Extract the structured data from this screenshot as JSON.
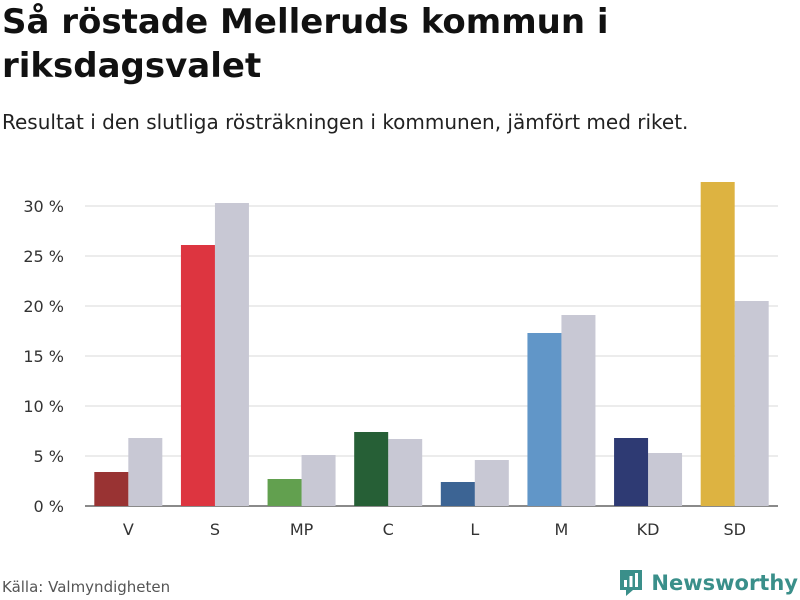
{
  "header": {
    "title": "Så röstade Melleruds kommun i riksdagsvalet",
    "subtitle": "Resultat i den slutliga rösträkningen i kommunen, jämfört med riket."
  },
  "footer": {
    "source": "Källa: Valmyndigheten",
    "brand": "Newsworthy",
    "brand_icon": "newsworthy-logo-icon",
    "brand_color": "#3a8f8a"
  },
  "chart_data": {
    "type": "bar",
    "title": "Så röstade Melleruds kommun i riksdagsvalet",
    "subtitle": "Resultat i den slutliga rösträkningen i kommunen, jämfört med riket.",
    "xlabel": "",
    "ylabel": "",
    "ylim": [
      0,
      33
    ],
    "yticks": [
      0,
      5,
      10,
      15,
      20,
      25,
      30
    ],
    "ytick_labels": [
      "0 %",
      "5 %",
      "10 %",
      "15 %",
      "20 %",
      "25 %",
      "30 %"
    ],
    "grid": true,
    "legend": "none",
    "categories": [
      "V",
      "S",
      "MP",
      "C",
      "L",
      "M",
      "KD",
      "SD"
    ],
    "series": [
      {
        "name": "Melleruds kommun",
        "values": [
          3.4,
          26.1,
          2.7,
          7.4,
          2.4,
          17.3,
          6.8,
          32.4
        ],
        "colors": [
          "#993333",
          "#dd3540",
          "#62a04f",
          "#265f36",
          "#3c6494",
          "#6196c8",
          "#2e3a73",
          "#ddb341"
        ]
      },
      {
        "name": "Riket",
        "values": [
          6.8,
          30.3,
          5.1,
          6.7,
          4.6,
          19.1,
          5.3,
          20.5
        ],
        "color": "#c8c8d4"
      }
    ]
  }
}
